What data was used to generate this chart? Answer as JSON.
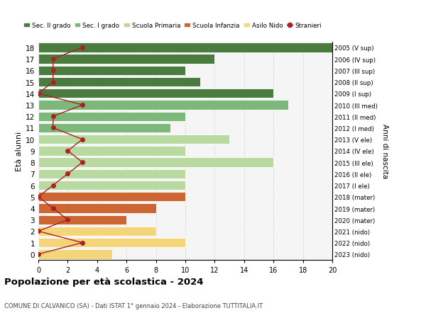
{
  "ages": [
    18,
    17,
    16,
    15,
    14,
    13,
    12,
    11,
    10,
    9,
    8,
    7,
    6,
    5,
    4,
    3,
    2,
    1,
    0
  ],
  "right_labels": [
    "2005 (V sup)",
    "2006 (IV sup)",
    "2007 (III sup)",
    "2008 (II sup)",
    "2009 (I sup)",
    "2010 (III med)",
    "2011 (II med)",
    "2012 (I med)",
    "2013 (V ele)",
    "2014 (IV ele)",
    "2015 (III ele)",
    "2016 (II ele)",
    "2017 (I ele)",
    "2018 (mater)",
    "2019 (mater)",
    "2020 (mater)",
    "2021 (nido)",
    "2022 (nido)",
    "2023 (nido)"
  ],
  "bar_values": [
    20,
    12,
    10,
    11,
    16,
    17,
    10,
    9,
    13,
    10,
    16,
    10,
    10,
    10,
    8,
    6,
    8,
    10,
    5
  ],
  "bar_colors": [
    "#4a7c3f",
    "#4a7c3f",
    "#4a7c3f",
    "#4a7c3f",
    "#4a7c3f",
    "#7cb87a",
    "#7cb87a",
    "#7cb87a",
    "#b8d9a0",
    "#b8d9a0",
    "#b8d9a0",
    "#b8d9a0",
    "#b8d9a0",
    "#cc6633",
    "#cc6633",
    "#cc6633",
    "#f5d57a",
    "#f5d57a",
    "#f5d57a"
  ],
  "stranieri_values": [
    3,
    1,
    1,
    1,
    0,
    3,
    1,
    1,
    3,
    2,
    3,
    2,
    1,
    0,
    1,
    2,
    0,
    3,
    0
  ],
  "title": "Popolazione per età scolastica - 2024",
  "subtitle": "COMUNE DI CALVANICO (SA) - Dati ISTAT 1° gennaio 2024 - Elaborazione TUTTITALIA.IT",
  "ylabel_left": "Età alunni",
  "ylabel_right": "Anni di nascita",
  "xlim": [
    0,
    20
  ],
  "xticks": [
    0,
    2,
    4,
    6,
    8,
    10,
    12,
    14,
    16,
    18,
    20
  ],
  "legend_labels": [
    "Sec. II grado",
    "Sec. I grado",
    "Scuola Primaria",
    "Scuola Infanzia",
    "Asilo Nido",
    "Stranieri"
  ],
  "legend_colors": [
    "#4a7c3f",
    "#7cb87a",
    "#b8d9a0",
    "#cc6633",
    "#f5d57a",
    "#aa2222"
  ],
  "stranieri_color": "#aa2222",
  "bg_color": "#f5f5f5"
}
